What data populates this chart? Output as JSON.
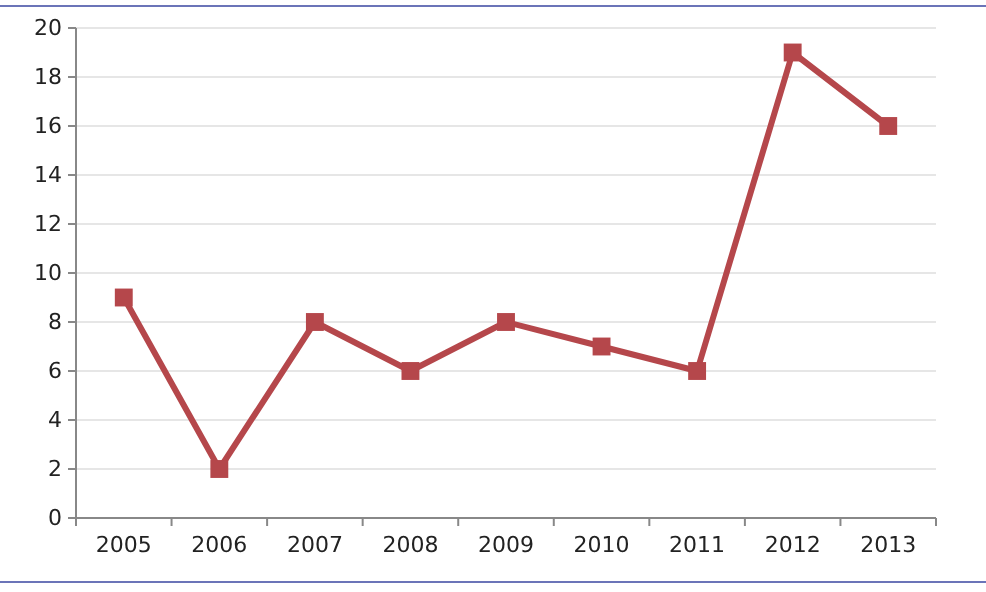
{
  "chart_data": {
    "type": "line",
    "categories": [
      "2005",
      "2006",
      "2007",
      "2008",
      "2009",
      "2010",
      "2011",
      "2012",
      "2013"
    ],
    "series": [
      {
        "color": "#b5474b",
        "values": [
          9,
          2,
          8,
          6,
          8,
          7,
          6,
          19,
          16
        ]
      }
    ],
    "ylim": [
      0,
      20
    ],
    "yticks": [
      0,
      2,
      4,
      6,
      8,
      10,
      12,
      14,
      16,
      18,
      20
    ],
    "grid": "y",
    "marker": "square",
    "line_style": "solid",
    "legend": false
  }
}
